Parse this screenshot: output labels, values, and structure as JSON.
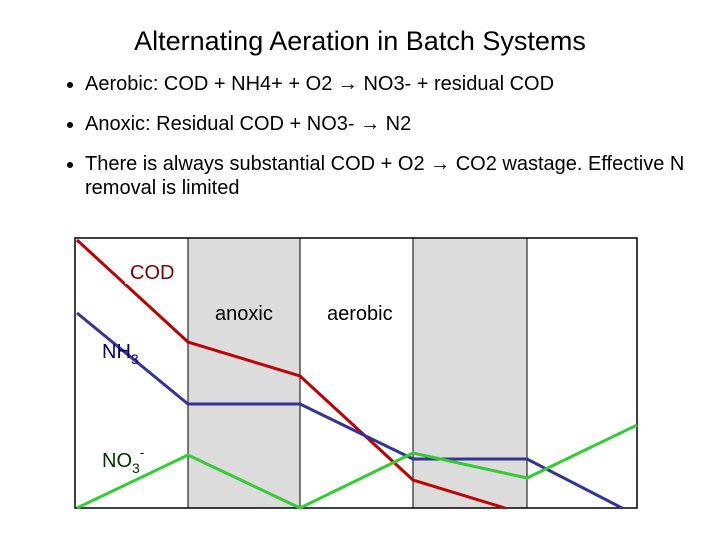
{
  "title": "Alternating Aeration in Batch Systems",
  "bullets": [
    "Aerobic:  COD + NH4+ + O2 → NO3- + residual COD",
    "Anoxic: Residual COD + NO3- → N2",
    "There is always substantial COD + O2 → CO2 wastage. Effective N removal is limited"
  ],
  "diagram": {
    "cod_label": "COD",
    "anoxic_label": "anoxic",
    "aerobic_label": "aerobic",
    "nh3_label": {
      "base": "NH",
      "sub": "3"
    },
    "no3_label": {
      "base": "NO",
      "sub": "3",
      "sup": "-"
    }
  }
}
